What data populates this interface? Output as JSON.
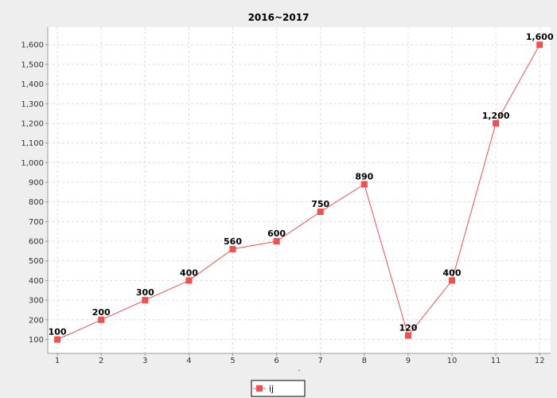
{
  "chart_data": {
    "type": "line",
    "title": "2016~2017",
    "xlabel": ".",
    "ylabel": "",
    "x": [
      1,
      2,
      3,
      4,
      5,
      6,
      7,
      8,
      9,
      10,
      11,
      12
    ],
    "x_tick_labels": [
      "1",
      "2",
      "3",
      "4",
      "5",
      "6",
      "7",
      "8",
      "9",
      "10",
      "11",
      "12"
    ],
    "series": [
      {
        "name": "ij",
        "values": [
          100,
          200,
          300,
          400,
          560,
          600,
          750,
          890,
          120,
          400,
          1200,
          1600
        ],
        "value_labels": [
          "100",
          "200",
          "300",
          "400",
          "560",
          "600",
          "750",
          "890",
          "120",
          "400",
          "1,200",
          "1,600"
        ],
        "color": "#f05050",
        "marker": "square"
      }
    ],
    "y_ticks": [
      100,
      200,
      300,
      400,
      500,
      600,
      700,
      800,
      900,
      1000,
      1100,
      1200,
      1300,
      1400,
      1500,
      1600
    ],
    "y_tick_labels": [
      "100",
      "200",
      "300",
      "400",
      "500",
      "600",
      "700",
      "800",
      "900",
      "1,000",
      "1,100",
      "1,200",
      "1,300",
      "1,400",
      "1,500",
      "1,600"
    ],
    "ylim": [
      29,
      1690
    ],
    "xlim": [
      0.78,
      12.25
    ],
    "grid": true,
    "legend": "bottom-center",
    "plot_background": "#ffffff",
    "page_background": "#eeeeee"
  }
}
